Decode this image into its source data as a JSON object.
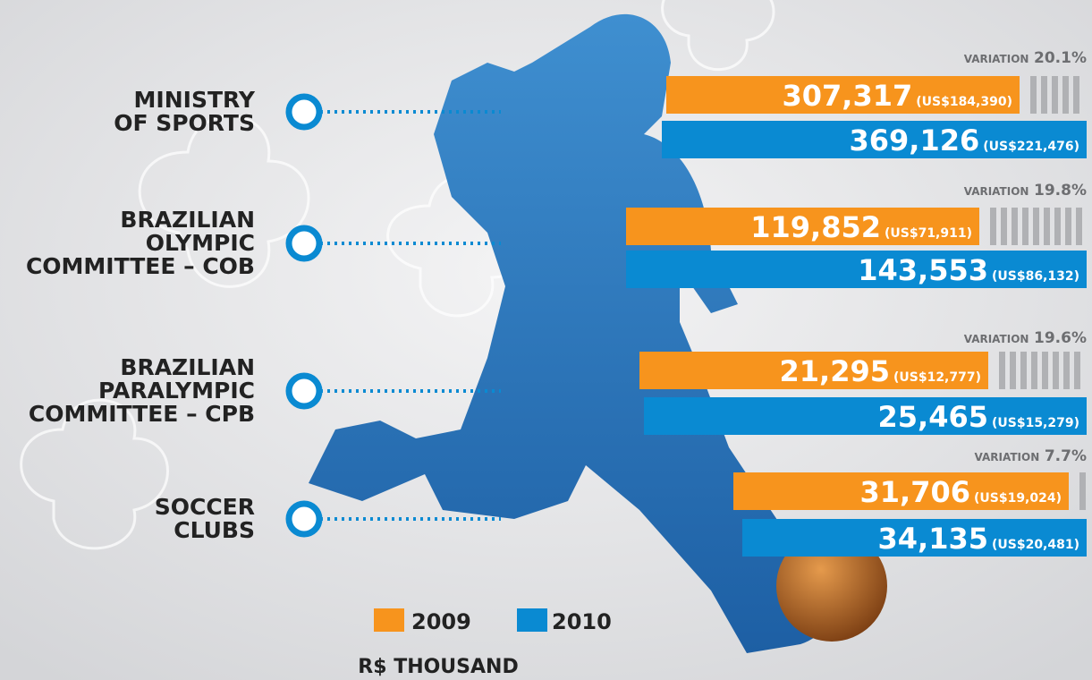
{
  "groups": [
    {
      "label": [
        "MINISTRY",
        "OF SPORTS"
      ],
      "variation_label": "VARIATION",
      "variation": "20.1%",
      "value_2009": "307,317",
      "usd_2009": "(US$184,390)",
      "value_2010": "369,126",
      "usd_2010": "(US$221,476)"
    },
    {
      "label": [
        "BRAZILIAN",
        "OLYMPIC",
        "COMMITTEE – COB"
      ],
      "variation_label": "VARIATION",
      "variation": "19.8%",
      "value_2009": "119,852",
      "usd_2009": "(US$71,911)",
      "value_2010": "143,553",
      "usd_2010": "(US$86,132)"
    },
    {
      "label": [
        "BRAZILIAN",
        "PARALYMPIC",
        "COMMITTEE – CPB"
      ],
      "variation_label": "VARIATION",
      "variation": "19.6%",
      "value_2009": "21,295",
      "usd_2009": "(US$12,777)",
      "value_2010": "25,465",
      "usd_2010": "(US$15,279)"
    },
    {
      "label": [
        "SOCCER",
        "CLUBS"
      ],
      "variation_label": "VARIATION",
      "variation": "7.7%",
      "value_2009": "31,706",
      "usd_2009": "(US$19,024)",
      "value_2010": "34,135",
      "usd_2010": "(US$20,481)"
    }
  ],
  "legend": {
    "year_2009": "2009",
    "year_2010": "2010",
    "color_2009": "#f7941d",
    "color_2010": "#0a8ad2"
  },
  "unit": "R$ THOUSAND"
}
